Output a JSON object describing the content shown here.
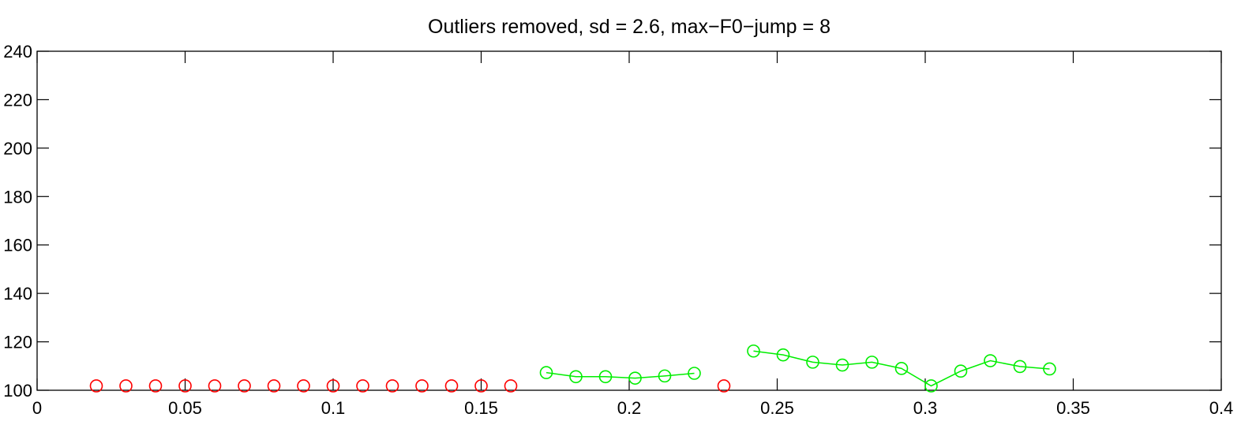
{
  "chart_data": {
    "type": "scatter",
    "title": "Outliers removed, sd = 2.6, max−F0−jump = 8",
    "xlabel": "",
    "ylabel": "",
    "xlim": [
      0,
      0.4
    ],
    "ylim": [
      100,
      240
    ],
    "x_ticks": [
      0,
      0.05,
      0.1,
      0.15,
      0.2,
      0.25,
      0.3,
      0.35,
      0.4
    ],
    "x_tick_labels": [
      "0",
      "0.05",
      "0.1",
      "0.15",
      "0.2",
      "0.25",
      "0.3",
      "0.35",
      "0.4"
    ],
    "y_ticks": [
      100,
      120,
      140,
      160,
      180,
      200,
      220,
      240
    ],
    "y_tick_labels": [
      "100",
      "120",
      "140",
      "160",
      "180",
      "200",
      "220",
      "240"
    ],
    "grid": false,
    "series": [
      {
        "color": "#ff0000",
        "marker": "circle-open",
        "line": false,
        "points": [
          [
            0.02,
            101.8
          ],
          [
            0.03,
            101.8
          ],
          [
            0.04,
            101.8
          ],
          [
            0.05,
            101.8
          ],
          [
            0.06,
            101.8
          ],
          [
            0.07,
            101.8
          ],
          [
            0.08,
            101.8
          ],
          [
            0.09,
            101.8
          ],
          [
            0.1,
            101.8
          ],
          [
            0.11,
            101.8
          ],
          [
            0.12,
            101.8
          ],
          [
            0.13,
            101.8
          ],
          [
            0.14,
            101.8
          ],
          [
            0.15,
            101.8
          ],
          [
            0.16,
            101.8
          ],
          [
            0.232,
            101.8
          ]
        ]
      },
      {
        "color": "#00ee00",
        "marker": "circle-open",
        "line": true,
        "segments": [
          [
            [
              0.172,
              107.3
            ],
            [
              0.182,
              105.6
            ],
            [
              0.192,
              105.6
            ],
            [
              0.202,
              105.0
            ],
            [
              0.212,
              105.9
            ],
            [
              0.222,
              107.0
            ]
          ],
          [
            [
              0.242,
              116.2
            ],
            [
              0.252,
              114.6
            ],
            [
              0.262,
              111.6
            ],
            [
              0.272,
              110.4
            ],
            [
              0.282,
              111.6
            ],
            [
              0.292,
              109.0
            ],
            [
              0.302,
              101.8
            ],
            [
              0.312,
              107.9
            ],
            [
              0.322,
              112.2
            ],
            [
              0.332,
              109.8
            ],
            [
              0.342,
              108.8
            ]
          ]
        ]
      }
    ]
  }
}
